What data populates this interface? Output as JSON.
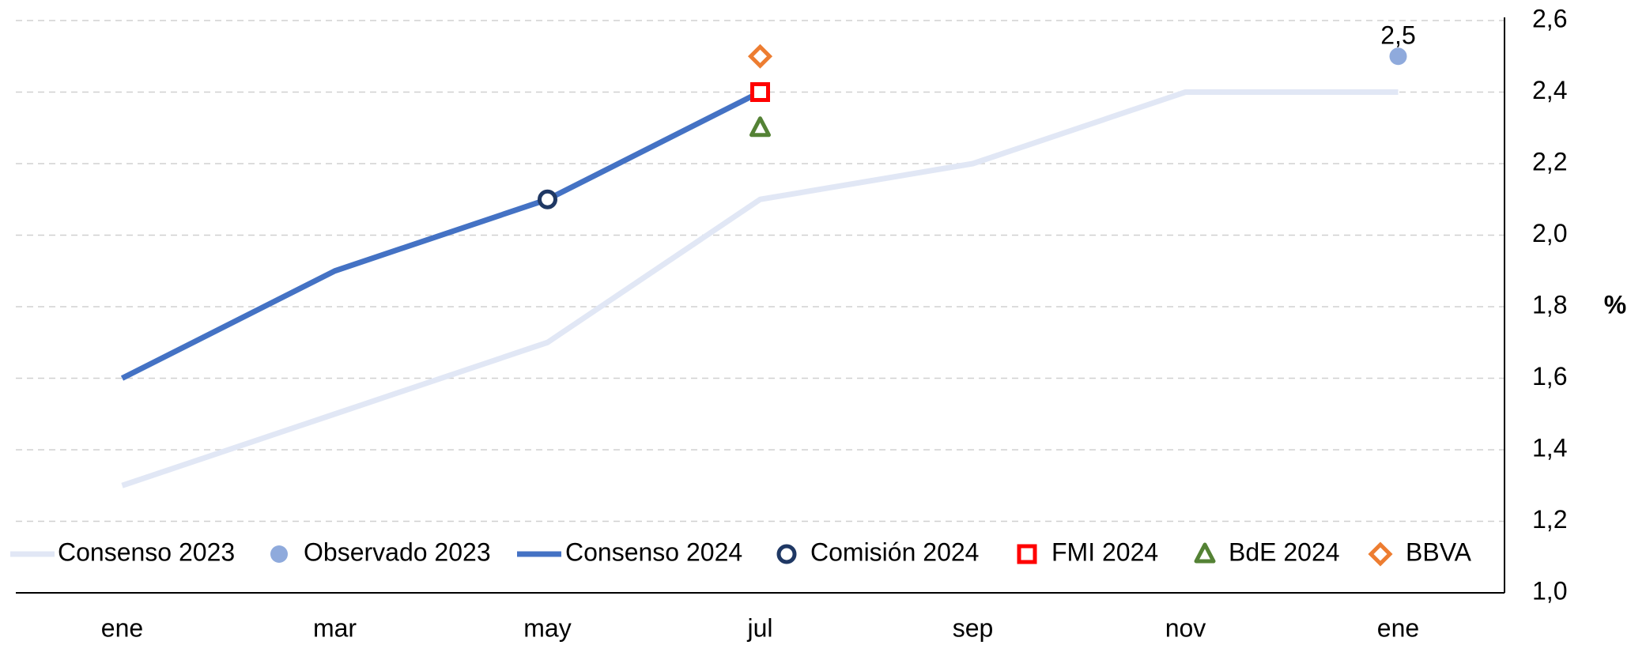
{
  "chart_data": {
    "type": "line",
    "categories": [
      "ene",
      "mar",
      "may",
      "jul",
      "sep",
      "nov",
      "ene"
    ],
    "series": [
      {
        "name": "Consenso 2023",
        "color": "#e1e7f5",
        "values": [
          1.3,
          1.5,
          1.7,
          2.1,
          2.2,
          2.4,
          2.4
        ]
      },
      {
        "name": "Observado 2023",
        "color": "#8faadc",
        "marker": "circle",
        "values": [
          null,
          null,
          null,
          null,
          null,
          null,
          2.5
        ],
        "value_labels": [
          null,
          null,
          null,
          null,
          null,
          null,
          "2,5"
        ]
      },
      {
        "name": "Consenso 2024",
        "color": "#4472c4",
        "values": [
          1.6,
          1.9,
          2.1,
          2.4,
          null,
          null,
          null
        ]
      },
      {
        "name": "Comisión 2024",
        "color": "#1f3864",
        "marker": "ring",
        "values": [
          null,
          null,
          2.1,
          null,
          null,
          null,
          null
        ]
      },
      {
        "name": "FMI 2024",
        "color": "#ff0000",
        "marker": "square",
        "values": [
          null,
          null,
          null,
          2.4,
          null,
          null,
          null
        ]
      },
      {
        "name": "BdE 2024",
        "color": "#548235",
        "marker": "triangle",
        "values": [
          null,
          null,
          null,
          2.3,
          null,
          null,
          null
        ]
      },
      {
        "name": "BBVA",
        "color": "#ed7d31",
        "marker": "diamond",
        "values": [
          null,
          null,
          null,
          2.5,
          null,
          null,
          null
        ]
      }
    ],
    "ylabel": "%",
    "ylim": [
      1.0,
      2.6
    ],
    "yticks": [
      {
        "value": 1.0,
        "label": "1,0"
      },
      {
        "value": 1.2,
        "label": "1,2"
      },
      {
        "value": 1.4,
        "label": "1,4"
      },
      {
        "value": 1.6,
        "label": "1,6"
      },
      {
        "value": 1.8,
        "label": "1,8"
      },
      {
        "value": 2.0,
        "label": "2,0"
      },
      {
        "value": 2.2,
        "label": "2,2"
      },
      {
        "value": 2.4,
        "label": "2,4"
      },
      {
        "value": 2.6,
        "label": "2,6"
      }
    ],
    "grid": true,
    "legend": "bottom"
  }
}
